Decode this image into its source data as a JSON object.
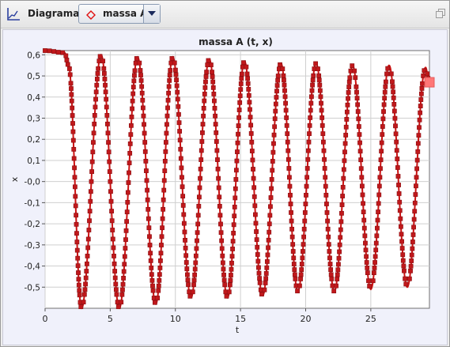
{
  "toolbar": {
    "title": "Diagrama",
    "selected_series": "massa A",
    "diagram_icon": "chart-axes-icon",
    "series_icon": "diamond-icon",
    "dropdown_icon": "chevron-down-icon",
    "restore_icon": "restore-window-icon"
  },
  "colors": {
    "series": "#cc1111",
    "marker": "#c0181b",
    "marker_end": "#ff7777",
    "plot_bg": "#ffffff",
    "panel_bg": "#f0f1fb",
    "grid": "#cfcfcf"
  },
  "chart_data": {
    "type": "line",
    "title": "massa A (t, x)",
    "xlabel": "t",
    "ylabel": "x",
    "xlim": [
      0,
      29.5
    ],
    "ylim": [
      -0.6,
      0.62
    ],
    "grid": true,
    "legend": "none",
    "xticks": [
      0,
      5,
      10,
      15,
      20,
      25
    ],
    "xtick_labels": [
      "0",
      "5",
      "10",
      "15",
      "20",
      "25"
    ],
    "yticks": [
      0.6,
      0.5,
      0.4,
      0.3,
      0.2,
      0.1,
      0.0,
      -0.1,
      -0.2,
      -0.3,
      -0.4,
      -0.5
    ],
    "ytick_labels": [
      "0,6",
      "0,5",
      "0,4",
      "0,3",
      "0,2",
      "0,1",
      "-0,0",
      "-0,1",
      "-0,2",
      "-0,3",
      "-0,4",
      "-0,5"
    ],
    "series": [
      {
        "x": [
          0,
          1.5,
          1.8,
          2.8,
          4.3,
          5.7,
          7.1,
          8.5,
          9.8,
          11.2,
          12.6,
          14.0,
          15.3,
          16.7,
          18.1,
          19.4,
          20.8,
          22.2,
          23.6,
          25.0,
          26.4,
          27.8,
          29.2,
          29.5
        ],
        "y": [
          0.62,
          0.61,
          0.55,
          -0.6,
          0.6,
          -0.6,
          0.59,
          -0.58,
          0.59,
          -0.55,
          0.58,
          -0.55,
          0.57,
          -0.54,
          0.56,
          -0.52,
          0.56,
          -0.52,
          0.55,
          -0.51,
          0.55,
          -0.5,
          0.54,
          0.47
        ]
      }
    ]
  }
}
